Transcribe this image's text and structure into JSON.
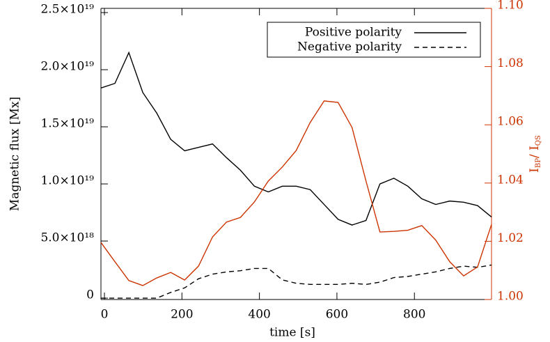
{
  "chart_data": {
    "type": "line",
    "xlabel": "time [s]",
    "ylabel": "Magnetic flux [Mx]",
    "y2label": [
      "I",
      "BP",
      "/ I",
      "QS"
    ],
    "x": [
      -9,
      27,
      63,
      99,
      135,
      171,
      207,
      243,
      279,
      315,
      351,
      387,
      423,
      459,
      495,
      531,
      567,
      603,
      639,
      675,
      711,
      747,
      783,
      819,
      855,
      891,
      927,
      963,
      999
    ],
    "xlim": [
      -9,
      999
    ],
    "xticks": [
      0,
      200,
      400,
      600,
      800
    ],
    "ylim": [
      -1.2e+17,
      2.537e+19
    ],
    "yticks": [
      {
        "value": 0,
        "label": "0"
      },
      {
        "value": 5e+18,
        "label": "5.0×10¹⁸"
      },
      {
        "value": 1e+19,
        "label": "1.0×10¹⁹"
      },
      {
        "value": 1.5e+19,
        "label": "1.5×10¹⁹"
      },
      {
        "value": 2e+19,
        "label": "2.0×10¹⁹"
      },
      {
        "value": 2.5e+19,
        "label": "2.5×10¹⁹"
      }
    ],
    "y2lim": [
      1.0,
      1.1
    ],
    "y2ticks": [
      {
        "value": 1.0,
        "label": "1.00"
      },
      {
        "value": 1.02,
        "label": "1.02"
      },
      {
        "value": 1.04,
        "label": "1.04"
      },
      {
        "value": 1.06,
        "label": "1.06"
      },
      {
        "value": 1.08,
        "label": "1.08"
      },
      {
        "value": 1.1,
        "label": "1.10"
      }
    ],
    "y2color": "#cc3300",
    "series": [
      {
        "name": "Positive polarity",
        "color": "#000000",
        "dash": "none",
        "values": [
          1.84e+19,
          1.88e+19,
          2.15e+19,
          1.8e+19,
          1.62e+19,
          1.39e+19,
          1.29e+19,
          1.32e+19,
          1.35e+19,
          1.23e+19,
          1.12e+19,
          9.8e+18,
          9.3e+18,
          9.8e+18,
          9.8e+18,
          9.5e+18,
          8.2e+18,
          6.9e+18,
          6.4e+18,
          6.8e+18,
          1e+19,
          1.05e+19,
          9.8e+18,
          8.7e+18,
          8.2e+18,
          8.5e+18,
          8.4e+18,
          8.1e+18,
          7.1e+18
        ]
      },
      {
        "name": "Negative polarity",
        "color": "#000000",
        "dash": "7,5",
        "values": [
          0,
          0,
          0,
          0,
          0,
          5e+17,
          9e+17,
          1.7e+18,
          2.1e+18,
          2.3e+18,
          2.4e+18,
          2.6e+18,
          2.6e+18,
          1.6e+18,
          1.3e+18,
          1.2e+18,
          1.2e+18,
          1.2e+18,
          1.3e+18,
          1.2e+18,
          1.4e+18,
          1.8e+18,
          1.9e+18,
          2.1e+18,
          2.3e+18,
          2.6e+18,
          2.8e+18,
          2.7e+18,
          2.9e+18
        ]
      },
      {
        "name": null,
        "color": "#cc3300",
        "dash": "none",
        "axis": "y2",
        "values": [
          1.0196,
          1.013,
          1.0065,
          1.0048,
          1.0074,
          1.0093,
          1.0067,
          1.0115,
          1.0215,
          1.0266,
          1.0282,
          1.0335,
          1.0407,
          1.0455,
          1.0512,
          1.0608,
          1.0682,
          1.0677,
          1.0591,
          1.0407,
          1.0232,
          1.0234,
          1.0238,
          1.0254,
          1.0204,
          1.013,
          1.0081,
          1.0112,
          1.0258
        ]
      }
    ]
  }
}
